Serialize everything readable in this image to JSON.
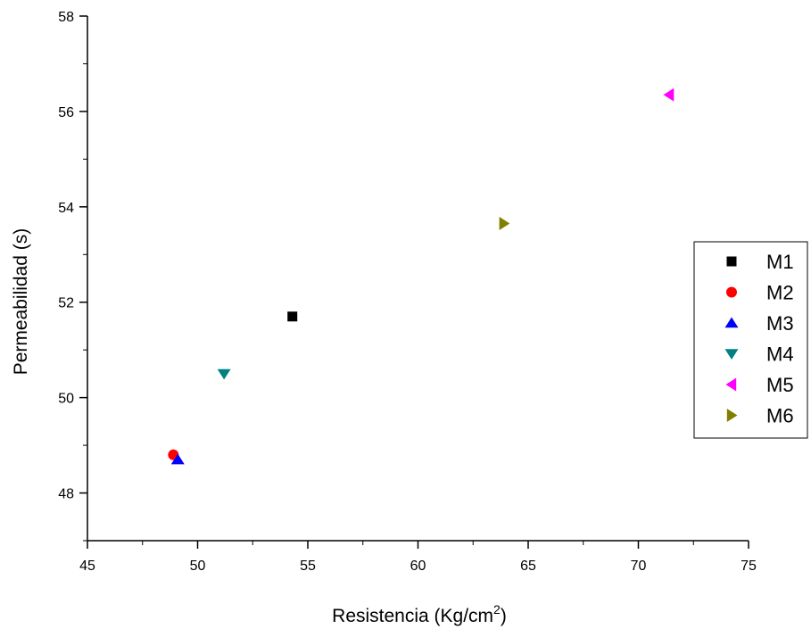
{
  "chart_data": {
    "type": "scatter",
    "xlabel": "Resistencia (Kg/cm",
    "xlabel_sup": "2",
    "xlabel_end": ")",
    "ylabel": "Permeabilidad (s)",
    "xlim": [
      45,
      75
    ],
    "ylim": [
      47,
      58
    ],
    "x_ticks": [
      45,
      50,
      55,
      60,
      65,
      70,
      75
    ],
    "y_ticks": [
      48,
      50,
      52,
      54,
      56,
      58
    ],
    "grid": false,
    "legend_position": "right",
    "series": [
      {
        "name": "M1",
        "marker": "square",
        "color": "#000000",
        "points": [
          {
            "x": 54.3,
            "y": 51.7
          }
        ]
      },
      {
        "name": "M2",
        "marker": "circle",
        "color": "#ff0000",
        "points": [
          {
            "x": 48.9,
            "y": 48.8
          }
        ]
      },
      {
        "name": "M3",
        "marker": "triangle-up",
        "color": "#0000ff",
        "points": [
          {
            "x": 49.1,
            "y": 48.7
          }
        ]
      },
      {
        "name": "M4",
        "marker": "triangle-down",
        "color": "#008080",
        "points": [
          {
            "x": 51.2,
            "y": 50.5
          }
        ]
      },
      {
        "name": "M5",
        "marker": "triangle-left",
        "color": "#ff00ff",
        "points": [
          {
            "x": 71.4,
            "y": 56.35
          }
        ]
      },
      {
        "name": "M6",
        "marker": "triangle-right",
        "color": "#808000",
        "points": [
          {
            "x": 63.9,
            "y": 53.65
          }
        ]
      }
    ]
  }
}
